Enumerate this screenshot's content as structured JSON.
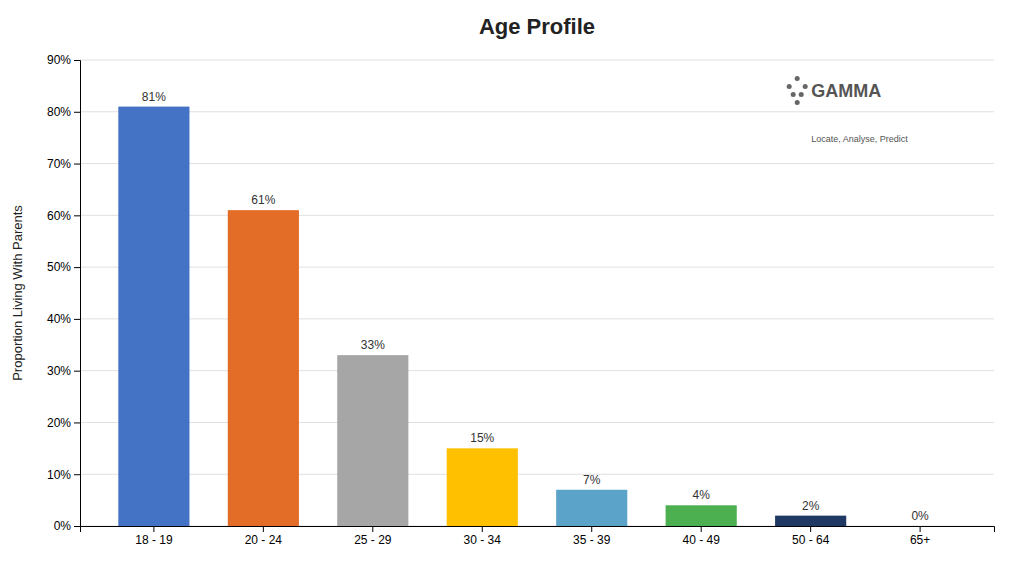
{
  "chart_data": {
    "type": "bar",
    "title": "Age Profile",
    "ylabel": "Proportion Living With Parents",
    "categories": [
      "18 - 19",
      "20 - 24",
      "25 - 29",
      "30 - 34",
      "35 - 39",
      "40 - 49",
      "50 - 64",
      "65+"
    ],
    "values": [
      81,
      61,
      33,
      15,
      7,
      4,
      2,
      0
    ],
    "value_labels": [
      "81%",
      "61%",
      "33%",
      "15%",
      "7%",
      "4%",
      "2%",
      "0%"
    ],
    "data_labels": true,
    "colors": [
      "#4472C4",
      "#E36C27",
      "#A6A6A6",
      "#FFC000",
      "#5BA3C9",
      "#4CAF50",
      "#1F3864",
      "#2E75B6"
    ],
    "ylim": [
      0,
      90
    ],
    "yticks": [
      {
        "value": 0,
        "label": "0%"
      },
      {
        "value": 10,
        "label": "10%"
      },
      {
        "value": 20,
        "label": "20%"
      },
      {
        "value": 30,
        "label": "30%"
      },
      {
        "value": 40,
        "label": "40%"
      },
      {
        "value": 50,
        "label": "50%"
      },
      {
        "value": 60,
        "label": "60%"
      },
      {
        "value": 70,
        "label": "70%"
      },
      {
        "value": 80,
        "label": "80%"
      },
      {
        "value": 90,
        "label": "90%"
      }
    ],
    "grid": true,
    "annotations": [
      "GAMMA",
      "Locate, Analyse, Predict"
    ]
  }
}
